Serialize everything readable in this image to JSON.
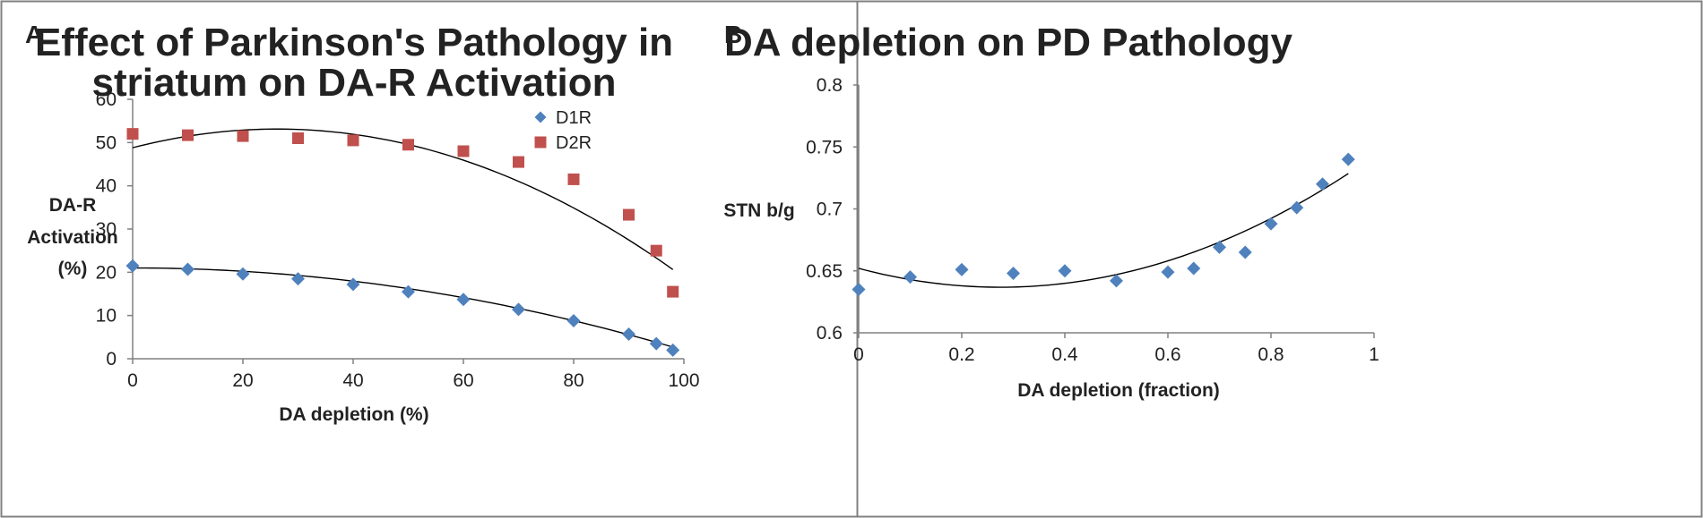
{
  "colors": {
    "d1r": "#4f81bd",
    "d2r": "#c0504d",
    "trend": "#000000",
    "axis": "#808080",
    "border": "#808080"
  },
  "chart_data": [
    {
      "panel": "A",
      "type": "scatter",
      "title_lines": [
        "Effect of Parkinson's Pathology in",
        "striatum on DA-R Activation"
      ],
      "xlabel": "DA  depletion (%)",
      "ylabel_lines": [
        "DA-R",
        "Activation",
        "(%)"
      ],
      "xlim": [
        0,
        100
      ],
      "ylim": [
        0,
        60
      ],
      "xticks": [
        0,
        20,
        40,
        60,
        80,
        100
      ],
      "yticks": [
        0,
        10,
        20,
        30,
        40,
        50,
        60
      ],
      "grid": false,
      "legend_position": "top-right",
      "series": [
        {
          "name": "D1R",
          "marker": "diamond",
          "color": "#4f81bd",
          "x": [
            0,
            10,
            20,
            30,
            40,
            50,
            60,
            70,
            80,
            90,
            95,
            98
          ],
          "y": [
            21.5,
            20.7,
            19.6,
            18.5,
            17.2,
            15.5,
            13.7,
            11.4,
            8.8,
            5.7,
            3.5,
            2.0
          ],
          "trendline": {
            "type": "poly2",
            "coef": [
              21.0,
              -0.0005,
              -0.0019
            ]
          }
        },
        {
          "name": "D2R",
          "marker": "square",
          "color": "#c0504d",
          "x": [
            0,
            10,
            20,
            30,
            40,
            50,
            60,
            70,
            80,
            90,
            95,
            98
          ],
          "y": [
            52.0,
            51.7,
            51.5,
            51.0,
            50.5,
            49.5,
            48.0,
            45.5,
            41.5,
            33.3,
            25.0,
            15.5
          ],
          "trendline": {
            "type": "poly2",
            "coef": [
              48.8,
              0.33,
              -0.0063
            ]
          }
        }
      ]
    },
    {
      "panel": "B",
      "type": "scatter",
      "title_lines": [
        "DA depletion on PD Pathology"
      ],
      "xlabel": "DA depletion (fraction)",
      "ylabel_lines": [
        "STN b/g"
      ],
      "xlim": [
        0,
        1
      ],
      "ylim": [
        0.6,
        0.8
      ],
      "xticks": [
        0,
        0.2,
        0.4,
        0.6,
        0.8,
        1
      ],
      "xtick_labels": [
        "0",
        "0.2",
        "0.4",
        "0.6",
        "0.8",
        "1"
      ],
      "yticks": [
        0.6,
        0.65,
        0.7,
        0.75,
        0.8
      ],
      "ytick_labels": [
        "0.6",
        "0.65",
        "0.7",
        "0.75",
        "0.8"
      ],
      "grid": false,
      "series": [
        {
          "name": "STN b/g",
          "marker": "diamond",
          "color": "#4f81bd",
          "x": [
            0,
            0.1,
            0.2,
            0.3,
            0.4,
            0.5,
            0.6,
            0.65,
            0.7,
            0.75,
            0.8,
            0.85,
            0.9,
            0.95
          ],
          "y": [
            0.635,
            0.645,
            0.651,
            0.648,
            0.65,
            0.642,
            0.649,
            0.652,
            0.669,
            0.665,
            0.688,
            0.701,
            0.72,
            0.74
          ],
          "trendline": {
            "type": "poly2",
            "coef": [
              0.652,
              -0.1107,
              0.2013
            ]
          }
        }
      ]
    }
  ]
}
